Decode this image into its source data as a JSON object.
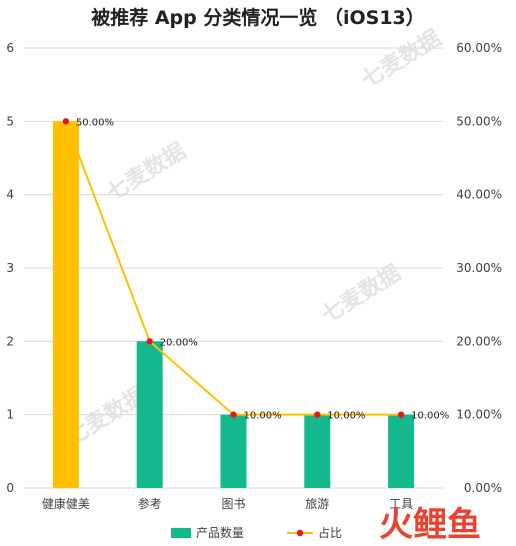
{
  "watermarks": [
    "七麦数据",
    "七麦数据",
    "七麦数据",
    "七麦数据"
  ],
  "brand_logo": "火鲤鱼",
  "colors": {
    "bar_default": "#13b98c",
    "bar_highlight": "#ffc000",
    "line": "#ffc000",
    "point": "#e8141c",
    "grid": "#d9d9d9"
  },
  "chart_data": {
    "type": "bar",
    "title": "被推荐 App 分类情况一览 （iOS13）",
    "categories": [
      "健康健美",
      "参考",
      "图书",
      "旅游",
      "工具"
    ],
    "series": [
      {
        "name": "产品数量",
        "type": "bar",
        "axis": "left",
        "values": [
          5,
          2,
          1,
          1,
          1
        ],
        "highlight_index": 0
      },
      {
        "name": "占比",
        "type": "line",
        "axis": "right",
        "values": [
          50,
          20,
          10,
          10,
          10
        ],
        "labels": [
          "50.00%",
          "20.00%",
          "10.00%",
          "10.00%",
          "10.00%"
        ]
      }
    ],
    "ylim": [
      0,
      6
    ],
    "yticks": [
      "0",
      "1",
      "2",
      "3",
      "4",
      "5",
      "6"
    ],
    "y2lim": [
      0,
      60
    ],
    "y2ticks": [
      "0.00%",
      "10.00%",
      "20.00%",
      "30.00%",
      "40.00%",
      "50.00%",
      "60.00%"
    ],
    "grid": true,
    "legend_position": "bottom",
    "legend": [
      "产品数量",
      "占比"
    ]
  }
}
